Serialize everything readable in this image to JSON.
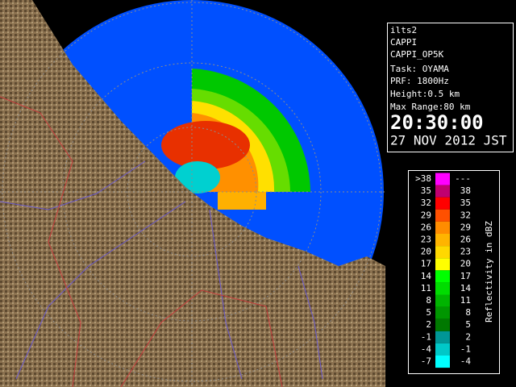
{
  "info": {
    "lines": [
      "ilts2",
      "CAPPI",
      "CAPPI_OP5K",
      "Task: OYAMA",
      "PRF: 1800Hz",
      "Height:0.5 km",
      "Max Range:80 km"
    ],
    "time": "20:30:00",
    "date": "27 NOV 2012 JST"
  },
  "legend": {
    "title": "Reflectivity in dBZ",
    "rows": [
      {
        "low": ">38",
        "high": "---",
        "color": "#ff00ff"
      },
      {
        "low": "35",
        "high": "38",
        "color": "#c00070"
      },
      {
        "low": "32",
        "high": "35",
        "color": "#ff0000"
      },
      {
        "low": "29",
        "high": "32",
        "color": "#ff5000"
      },
      {
        "low": "26",
        "high": "29",
        "color": "#ff8c00"
      },
      {
        "low": "23",
        "high": "26",
        "color": "#ffb400"
      },
      {
        "low": "20",
        "high": "23",
        "color": "#ffd800"
      },
      {
        "low": "17",
        "high": "20",
        "color": "#ffff00"
      },
      {
        "low": "14",
        "high": "17",
        "color": "#00ff00"
      },
      {
        "low": "11",
        "high": "14",
        "color": "#00dc00"
      },
      {
        "low": "8",
        "high": "11",
        "color": "#00b400"
      },
      {
        "low": "5",
        "high": "8",
        "color": "#009600"
      },
      {
        "low": "2",
        "high": "5",
        "color": "#007800"
      },
      {
        "low": "-1",
        "high": "2",
        "color": "#009696"
      },
      {
        "low": "-4",
        "high": "-1",
        "color": "#00c8c8"
      },
      {
        "low": "-7",
        "high": "-4",
        "color": "#00ffff"
      }
    ]
  }
}
